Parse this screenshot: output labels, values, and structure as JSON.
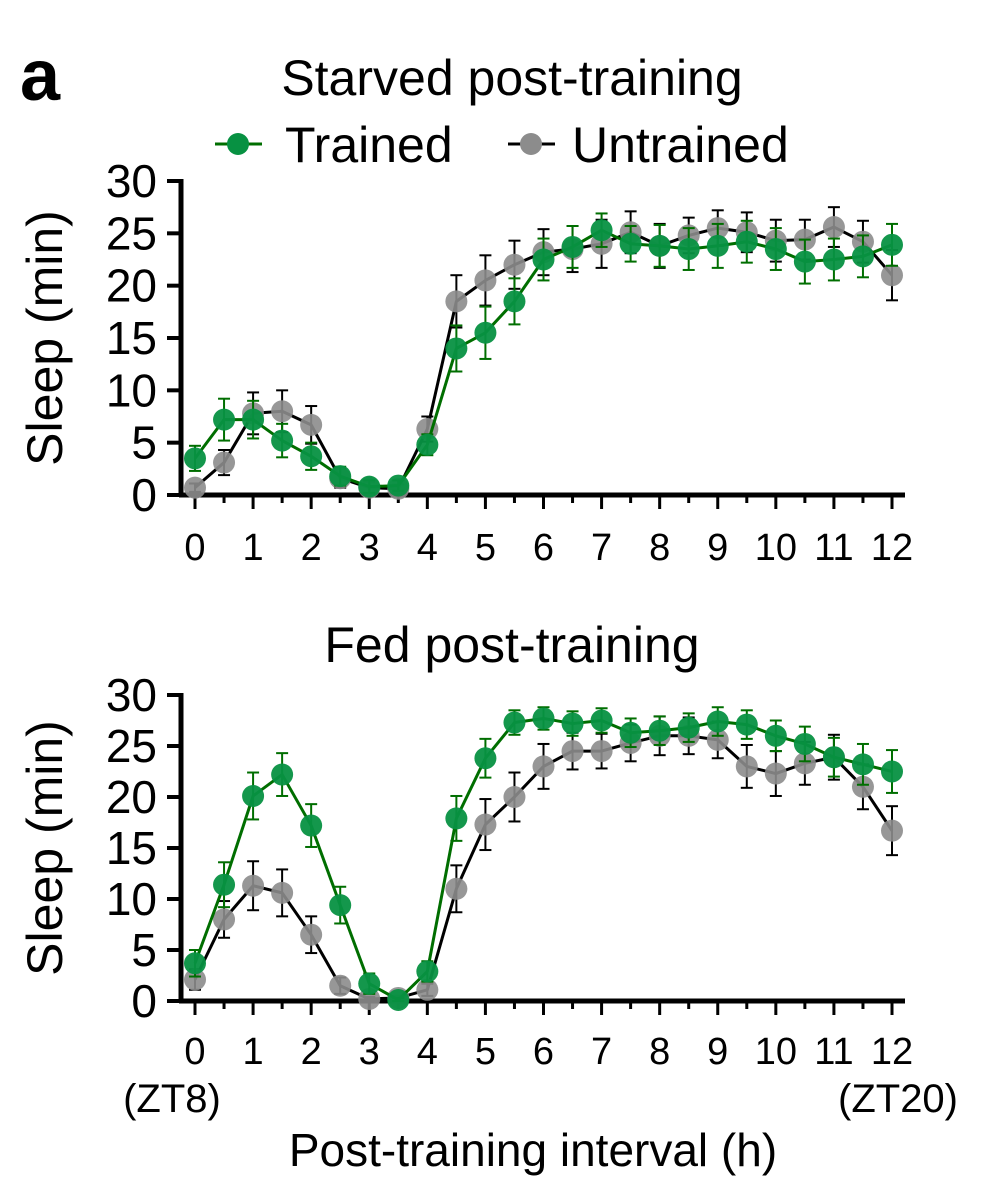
{
  "panel_letter": "a",
  "legend": {
    "trained": "Trained",
    "untrained": "Untrained"
  },
  "x_end_labels": {
    "left": "(ZT8)",
    "right": "(ZT20)"
  },
  "colors": {
    "trained_line": "#006e00",
    "trained_marker": "#079142",
    "untrained_line": "#000000",
    "untrained_marker": "#8c8c8c"
  },
  "chart_data": [
    {
      "type": "line",
      "title": "Starved post-training",
      "ylabel": "Sleep (min)",
      "xlabel": "",
      "ylim": [
        0,
        30
      ],
      "yticks": [
        "0",
        "5",
        "10",
        "15",
        "20",
        "25",
        "30"
      ],
      "xticks": [
        "0",
        "1",
        "2",
        "3",
        "4",
        "5",
        "6",
        "7",
        "8",
        "9",
        "10",
        "11",
        "12"
      ],
      "x": [
        0,
        0.5,
        1,
        1.5,
        2,
        2.5,
        3,
        3.5,
        4,
        4.5,
        5,
        5.5,
        6,
        6.5,
        7,
        7.5,
        8,
        8.5,
        9,
        9.5,
        10,
        10.5,
        11,
        11.5,
        12
      ],
      "series": [
        {
          "name": "Trained",
          "values": [
            3.5,
            7.2,
            7.2,
            5.2,
            3.7,
            1.8,
            0.8,
            0.9,
            4.8,
            14.0,
            15.5,
            18.5,
            22.5,
            23.7,
            25.3,
            24.0,
            23.8,
            23.5,
            23.8,
            24.2,
            23.5,
            22.3,
            22.5,
            22.8,
            23.9
          ],
          "errors": [
            1.2,
            2.0,
            1.8,
            1.6,
            1.3,
            0.9,
            0.6,
            0.5,
            1.0,
            2.2,
            2.5,
            2.2,
            2.0,
            2.0,
            1.6,
            1.7,
            2.0,
            2.0,
            2.1,
            2.0,
            2.0,
            2.1,
            2.0,
            2.0,
            2.0
          ]
        },
        {
          "name": "Untrained",
          "values": [
            0.7,
            3.1,
            7.8,
            8.0,
            6.7,
            1.6,
            0.7,
            0.6,
            6.3,
            18.5,
            20.5,
            22.0,
            23.2,
            23.5,
            24.0,
            25.1,
            23.8,
            24.8,
            25.5,
            25.1,
            24.3,
            24.4,
            25.6,
            24.2,
            21.0
          ],
          "errors": [
            0.4,
            1.2,
            2.0,
            2.0,
            1.8,
            0.9,
            0.5,
            0.4,
            1.2,
            2.5,
            2.4,
            2.3,
            2.2,
            2.2,
            2.3,
            2.0,
            2.1,
            1.7,
            1.7,
            1.9,
            2.0,
            1.9,
            1.9,
            2.0,
            2.4
          ]
        }
      ]
    },
    {
      "type": "line",
      "title": "Fed post-training",
      "ylabel": "Sleep (min)",
      "xlabel": "Post-training interval (h)",
      "ylim": [
        0,
        30
      ],
      "yticks": [
        "0",
        "5",
        "10",
        "15",
        "20",
        "25",
        "30"
      ],
      "xticks": [
        "0",
        "1",
        "2",
        "3",
        "4",
        "5",
        "6",
        "7",
        "8",
        "9",
        "10",
        "11",
        "12"
      ],
      "x": [
        0,
        0.5,
        1,
        1.5,
        2,
        2.5,
        3,
        3.5,
        4,
        4.5,
        5,
        5.5,
        6,
        6.5,
        7,
        7.5,
        8,
        8.5,
        9,
        9.5,
        10,
        10.5,
        11,
        11.5,
        12
      ],
      "series": [
        {
          "name": "Trained",
          "values": [
            3.7,
            11.4,
            20.1,
            22.2,
            17.2,
            9.4,
            1.7,
            0.1,
            2.9,
            17.9,
            23.8,
            27.3,
            27.7,
            27.2,
            27.5,
            26.3,
            26.5,
            26.8,
            27.4,
            27.1,
            26.0,
            25.2,
            23.9,
            23.2,
            22.5
          ],
          "errors": [
            1.3,
            2.2,
            2.3,
            2.1,
            2.1,
            1.8,
            1.0,
            0.2,
            1.0,
            2.2,
            1.9,
            1.2,
            1.1,
            1.2,
            1.2,
            1.4,
            1.4,
            1.4,
            1.4,
            1.4,
            1.5,
            1.7,
            1.9,
            2.0,
            2.1
          ]
        },
        {
          "name": "Untrained",
          "values": [
            2.1,
            8.0,
            11.3,
            10.6,
            6.5,
            1.5,
            0.2,
            0.3,
            1.1,
            11.0,
            17.3,
            20.0,
            23.0,
            24.5,
            24.5,
            25.3,
            26.0,
            26.0,
            25.6,
            23.0,
            22.3,
            23.3,
            23.9,
            21.0,
            16.7
          ],
          "errors": [
            1.0,
            1.8,
            2.4,
            2.3,
            1.8,
            0.8,
            0.2,
            0.2,
            0.6,
            2.3,
            2.5,
            2.4,
            2.2,
            1.8,
            1.7,
            1.8,
            1.9,
            1.8,
            1.8,
            2.1,
            2.2,
            2.1,
            2.2,
            2.2,
            2.4
          ]
        }
      ]
    }
  ]
}
